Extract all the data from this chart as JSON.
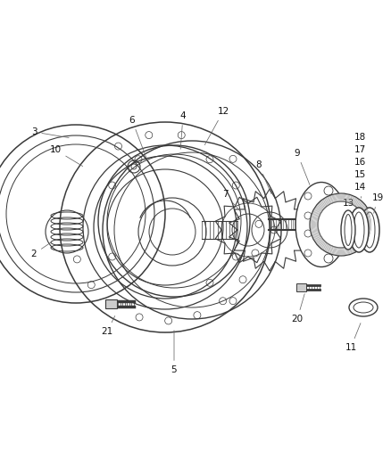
{
  "bg_color": "#ffffff",
  "line_color": "#3a3a3a",
  "label_color": "#000000",
  "figsize": [
    4.38,
    5.33
  ],
  "dpi": 100,
  "lw_main": 0.9,
  "lw_detail": 0.6,
  "label_fs": 7.5
}
